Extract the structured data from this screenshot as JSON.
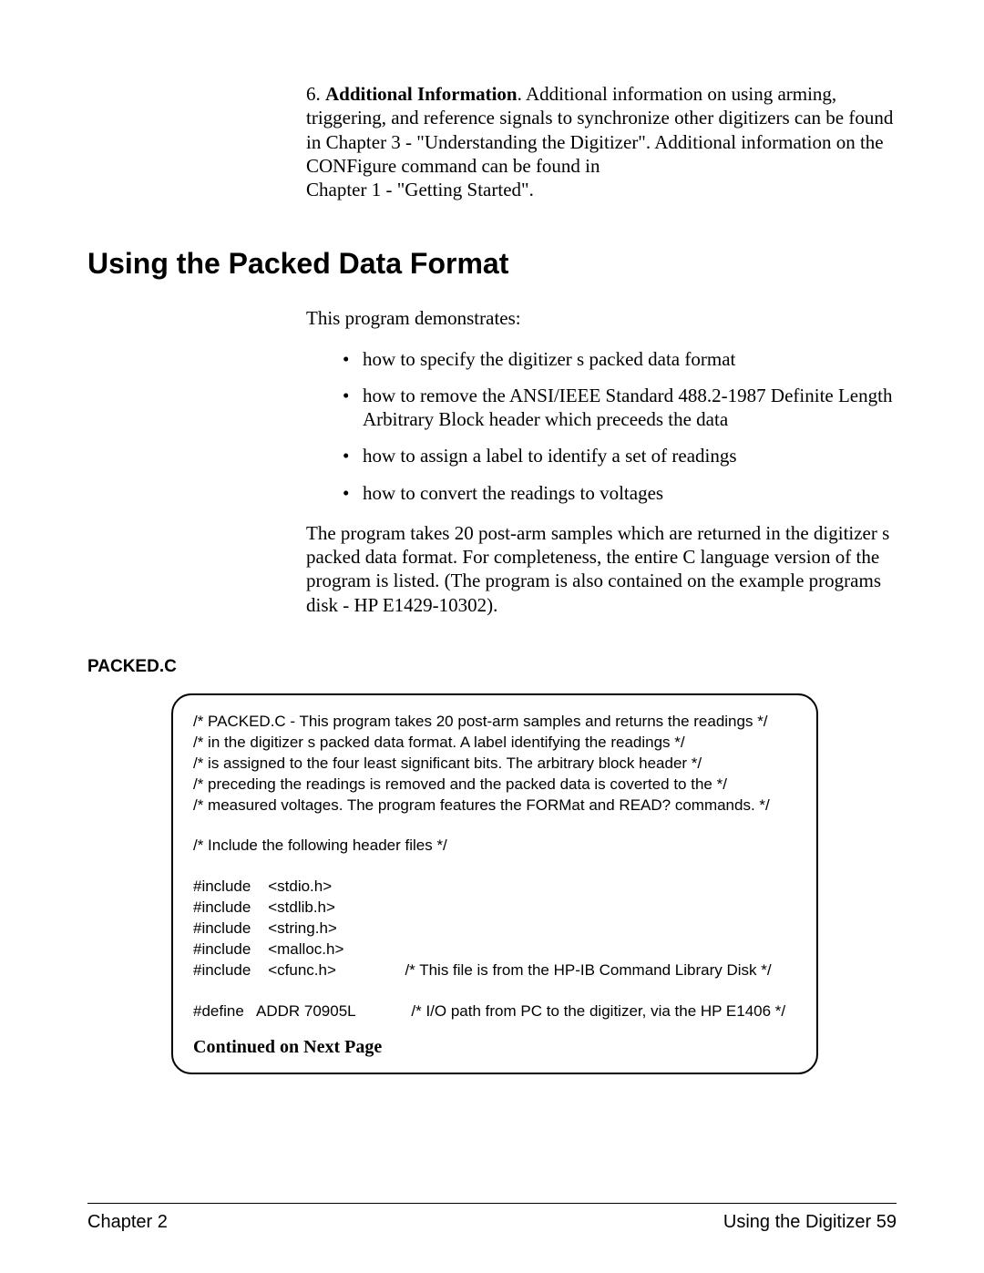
{
  "intro": {
    "number": "6. ",
    "bold_label": "Additional Information",
    "text_after_bold": ". Additional information on using arming, triggering, and reference signals to synchronize other digitizers can be found in Chapter 3 - \"Understanding the Digitizer\". Additional information on the CONFigure command can be found in",
    "line2": "Chapter 1 - \"Getting Started\"."
  },
  "section_title": "Using the Packed Data Format",
  "lead_in": "This program demonstrates:",
  "bullets": [
    "how to specify the digitizer s packed data format",
    "how to remove the ANSI/IEEE Standard 488.2-1987 Definite Length Arbitrary Block header which preceeds the data",
    "how to assign a label to identify a set of readings",
    "how to convert the readings to voltages"
  ],
  "para2": "The program takes 20 post-arm samples which are returned in the digitizer s packed data format. For completeness, the entire C language version of the program is listed. (The program is also contained on the example programs disk -  HP E1429-10302).",
  "program_label": "PACKED.C",
  "code": {
    "c1": "/* PACKED.C - This program takes 20 post-arm samples and returns the readings */",
    "c2": "/* in the digitizer s packed data format. A label identifying the readings */",
    "c3": "/* is assigned to the four least significant bits. The arbitrary block header */",
    "c4": "/* preceding the readings is removed and the packed data is coverted to the */",
    "c5": "/* measured voltages. The program features the FORMat and READ? commands. */",
    "c6": "/* Include the following header files */",
    "i1": "#include    <stdio.h>",
    "i2": "#include    <stdlib.h>",
    "i3": "#include    <string.h>",
    "i4": "#include    <malloc.h>",
    "i5": "#include    <cfunc.h>                /* This file is from the HP-IB Command Library Disk */",
    "d1": "#define   ADDR 70905L             /* I/O path from PC to the digitizer, via the HP E1406 */"
  },
  "continued": "Continued on Next Page",
  "footer": {
    "left": "Chapter 2",
    "right_label": "Using the Digitizer",
    "right_page": "  59"
  }
}
